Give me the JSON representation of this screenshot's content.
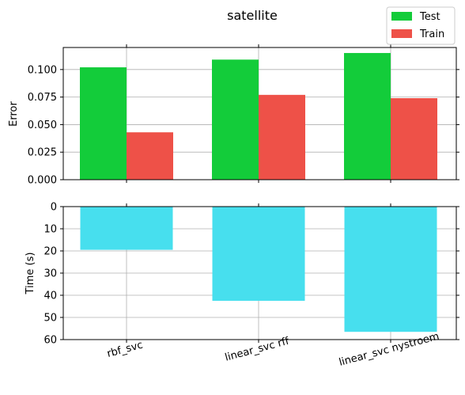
{
  "chart_data": [
    {
      "type": "bar",
      "title": "satellite",
      "ylabel": "Error",
      "categories": [
        "rbf_svc",
        "linear_svc rff",
        "linear_svc nystroem"
      ],
      "series": [
        {
          "name": "Test",
          "values": [
            0.102,
            0.109,
            0.115
          ],
          "color": "#13cc3a"
        },
        {
          "name": "Train",
          "values": [
            0.043,
            0.077,
            0.074
          ],
          "color": "#ee5148"
        }
      ],
      "ylim": [
        0,
        0.12
      ],
      "yticks": [
        "0.000",
        "0.025",
        "0.050",
        "0.075",
        "0.100"
      ],
      "ytick_values": [
        0,
        0.025,
        0.05,
        0.075,
        0.1
      ],
      "grid": true,
      "legend": "top-right"
    },
    {
      "type": "bar",
      "ylabel": "Time (s)",
      "categories": [
        "rbf_svc",
        "linear_svc rff",
        "linear_svc nystroem"
      ],
      "series": [
        {
          "values": [
            19.5,
            42.5,
            56.5
          ],
          "color": "#47dfee"
        }
      ],
      "ylim": [
        0,
        60
      ],
      "inverted_y": true,
      "yticks": [
        "0",
        "10",
        "20",
        "30",
        "40",
        "50",
        "60"
      ],
      "ytick_values": [
        0,
        10,
        20,
        30,
        40,
        50,
        60
      ],
      "grid": true
    }
  ]
}
